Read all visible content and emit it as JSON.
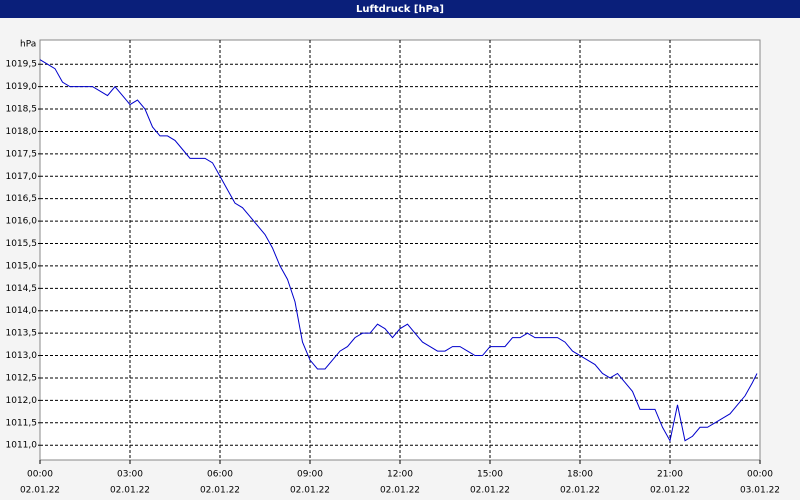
{
  "chart_data": {
    "type": "line",
    "title": "Luftdruck [hPa]",
    "y_unit": "hPa",
    "xlim": [
      0,
      24
    ],
    "ylim": [
      1010.67,
      1020.04
    ],
    "grid": true,
    "xticks": [
      {
        "value": 0,
        "label": "00:00"
      },
      {
        "value": 3,
        "label": "03:00"
      },
      {
        "value": 6,
        "label": "06:00"
      },
      {
        "value": 9,
        "label": "09:00"
      },
      {
        "value": 12,
        "label": "12:00"
      },
      {
        "value": 15,
        "label": "15:00"
      },
      {
        "value": 18,
        "label": "18:00"
      },
      {
        "value": 21,
        "label": "21:00"
      },
      {
        "value": 24,
        "label": "00:00"
      }
    ],
    "xtick_dates": [
      "02.01.22",
      "02.01.22",
      "02.01.22",
      "02.01.22",
      "02.01.22",
      "02.01.22",
      "02.01.22",
      "02.01.22",
      "03.01.22"
    ],
    "yticks": [
      {
        "value": 1011,
        "label": "1011,0"
      },
      {
        "value": 1011.5,
        "label": "1011,5"
      },
      {
        "value": 1012,
        "label": "1012,0"
      },
      {
        "value": 1012.5,
        "label": "1012,5"
      },
      {
        "value": 1013,
        "label": "1013,0"
      },
      {
        "value": 1013.5,
        "label": "1013,5"
      },
      {
        "value": 1014,
        "label": "1014,0"
      },
      {
        "value": 1014.5,
        "label": "1014,5"
      },
      {
        "value": 1015,
        "label": "1015,0"
      },
      {
        "value": 1015.5,
        "label": "1015,5"
      },
      {
        "value": 1016,
        "label": "1016,0"
      },
      {
        "value": 1016.5,
        "label": "1016,5"
      },
      {
        "value": 1017,
        "label": "1017,0"
      },
      {
        "value": 1017.5,
        "label": "1017,5"
      },
      {
        "value": 1018,
        "label": "1018,0"
      },
      {
        "value": 1018.5,
        "label": "1018,5"
      },
      {
        "value": 1019,
        "label": "1019,0"
      },
      {
        "value": 1019.5,
        "label": "1019,5"
      }
    ],
    "x": [
      0,
      0.25,
      0.5,
      0.75,
      1,
      1.25,
      1.5,
      1.75,
      2,
      2.25,
      2.5,
      2.75,
      3,
      3.25,
      3.5,
      3.75,
      4,
      4.25,
      4.5,
      4.75,
      5,
      5.25,
      5.5,
      5.75,
      6,
      6.25,
      6.5,
      6.75,
      7,
      7.25,
      7.5,
      7.75,
      8,
      8.25,
      8.5,
      8.75,
      9,
      9.25,
      9.5,
      9.75,
      10,
      10.25,
      10.5,
      10.75,
      11,
      11.25,
      11.5,
      11.75,
      12,
      12.25,
      12.5,
      12.75,
      13,
      13.25,
      13.5,
      13.75,
      14,
      14.25,
      14.5,
      14.75,
      15,
      15.25,
      15.5,
      15.75,
      16,
      16.25,
      16.5,
      16.75,
      17,
      17.25,
      17.5,
      17.75,
      18,
      18.25,
      18.5,
      18.75,
      19,
      19.25,
      19.5,
      19.75,
      20,
      20.25,
      20.5,
      20.75,
      21,
      21.25,
      21.5,
      21.75,
      22,
      22.25,
      22.5,
      22.75,
      23,
      23.25,
      23.5,
      23.75,
      23.9
    ],
    "series": [
      {
        "name": "Luftdruck",
        "color": "#0000cc",
        "values": [
          1019.6,
          1019.5,
          1019.4,
          1019.1,
          1019.0,
          1019.0,
          1019.0,
          1019.0,
          1018.9,
          1018.8,
          1019.0,
          1018.8,
          1018.6,
          1018.7,
          1018.5,
          1018.1,
          1017.9,
          1017.9,
          1017.8,
          1017.6,
          1017.4,
          1017.4,
          1017.4,
          1017.3,
          1017.0,
          1016.7,
          1016.4,
          1016.3,
          1016.1,
          1015.9,
          1015.7,
          1015.4,
          1015.0,
          1014.7,
          1014.2,
          1013.3,
          1012.9,
          1012.7,
          1012.7,
          1012.9,
          1013.1,
          1013.2,
          1013.4,
          1013.5,
          1013.5,
          1013.7,
          1013.6,
          1013.4,
          1013.6,
          1013.7,
          1013.5,
          1013.3,
          1013.2,
          1013.1,
          1013.1,
          1013.2,
          1013.2,
          1013.1,
          1013.0,
          1013.0,
          1013.2,
          1013.2,
          1013.2,
          1013.4,
          1013.4,
          1013.5,
          1013.4,
          1013.4,
          1013.4,
          1013.4,
          1013.3,
          1013.1,
          1013.0,
          1012.9,
          1012.8,
          1012.6,
          1012.5,
          1012.6,
          1012.4,
          1012.2,
          1011.8,
          1011.8,
          1011.8,
          1011.4,
          1011.1,
          1011.9,
          1011.1,
          1011.2,
          1011.4,
          1011.4,
          1011.5,
          1011.6,
          1011.7,
          1011.9,
          1012.1,
          1012.4,
          1012.6
        ]
      }
    ]
  }
}
